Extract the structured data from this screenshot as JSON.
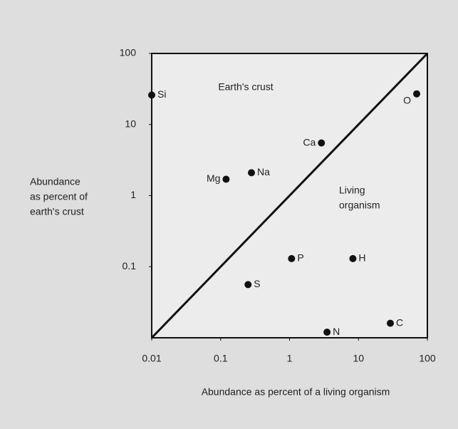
{
  "chart_data": {
    "type": "scatter",
    "x_label": "Abundance as percent of a living organism",
    "y_label": [
      "Abundance",
      "as percent of",
      "earth's crust"
    ],
    "annotations": [
      {
        "lines": [
          "Earth's crust"
        ]
      },
      {
        "lines": [
          "Living",
          "organism"
        ]
      }
    ],
    "log_x": true,
    "log_y": true,
    "diagonal": true,
    "color": "#111111",
    "xlim": [
      0.01,
      100
    ],
    "ylim": [
      0.01,
      100
    ],
    "xticks": [
      0.01,
      0.1,
      1,
      10,
      100
    ],
    "yticks": [
      0.1,
      1,
      10,
      100
    ],
    "points": [
      {
        "label": "Si",
        "x": 0.01,
        "y": 26
      },
      {
        "label": "O",
        "x": 70,
        "y": 27
      },
      {
        "label": "Ca",
        "x": 2.9,
        "y": 5.5
      },
      {
        "label": "Na",
        "x": 0.28,
        "y": 2.1
      },
      {
        "label": "Mg",
        "x": 0.12,
        "y": 1.7
      },
      {
        "label": "P",
        "x": 1.07,
        "y": 0.13
      },
      {
        "label": "H",
        "x": 8.3,
        "y": 0.13
      },
      {
        "label": "S",
        "x": 0.25,
        "y": 0.056
      },
      {
        "label": "N",
        "x": 3.5,
        "y": 0.012
      },
      {
        "label": "C",
        "x": 29,
        "y": 0.016
      }
    ]
  }
}
